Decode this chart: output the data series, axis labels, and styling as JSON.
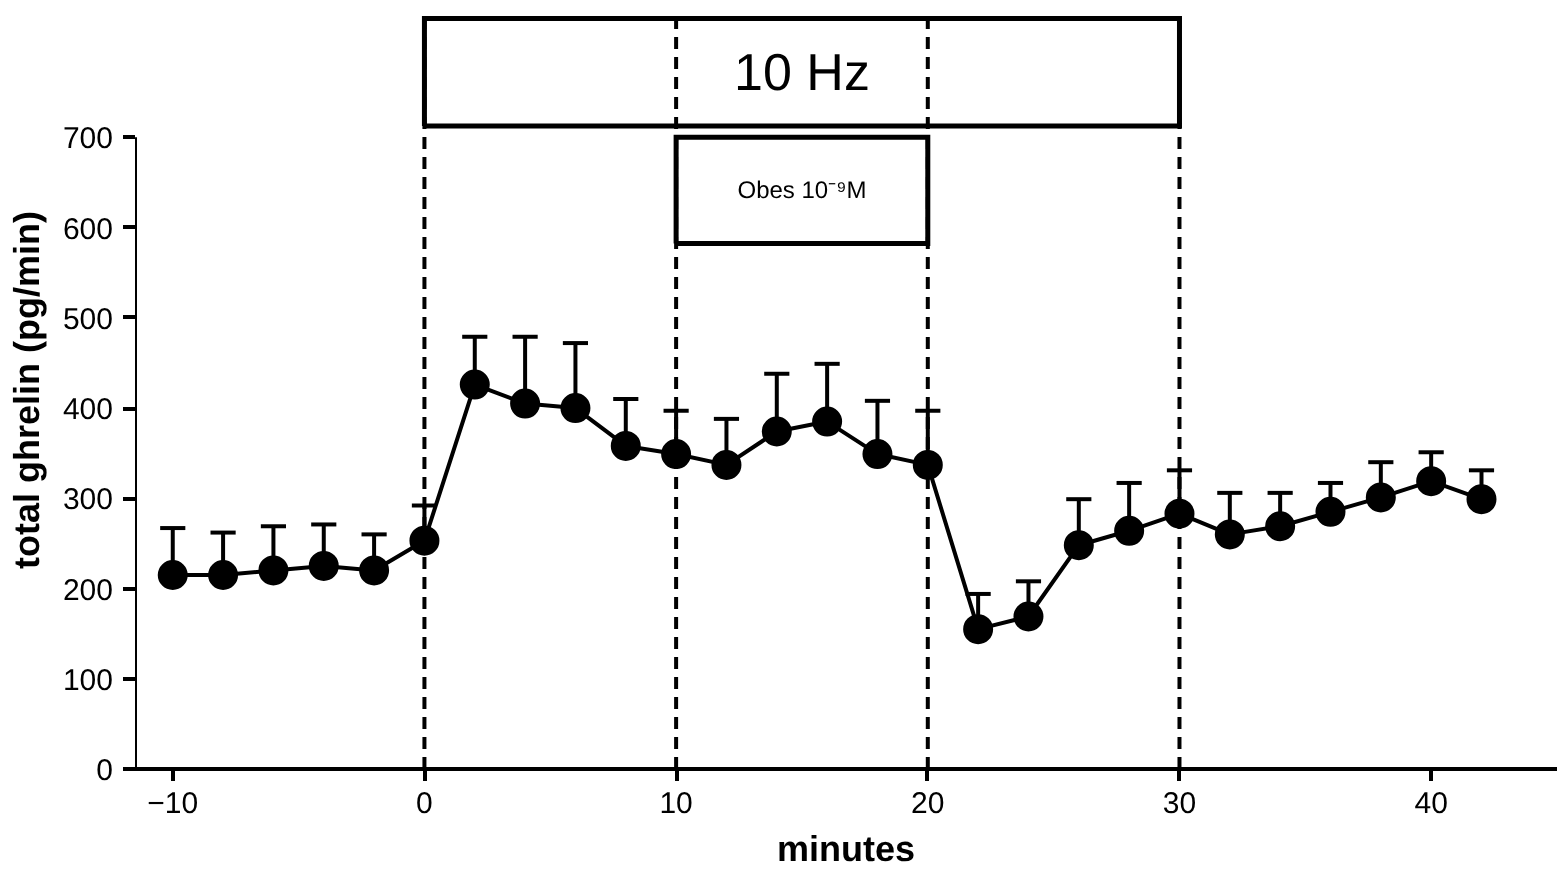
{
  "chart_data": {
    "type": "line",
    "xlabel": "minutes",
    "ylabel": "total ghrelin (pg/min)",
    "x": [
      -10,
      -8,
      -6,
      -4,
      -2,
      0,
      2,
      4,
      6,
      8,
      10,
      12,
      14,
      16,
      18,
      20,
      22,
      24,
      26,
      28,
      30,
      32,
      34,
      36,
      38,
      40,
      42
    ],
    "series": [
      {
        "color": "#000000",
        "values": [
          215,
          215,
          220,
          225,
          220,
          253,
          426,
          405,
          400,
          358,
          349,
          337,
          374,
          385,
          349,
          337,
          155,
          169,
          248,
          264,
          283,
          260,
          269,
          285,
          301,
          319,
          299
        ],
        "errors": [
          [
            215,
            267
          ],
          [
            215,
            262
          ],
          [
            220,
            269
          ],
          [
            225,
            271
          ],
          [
            220,
            260
          ],
          [
            253,
            292
          ],
          [
            426,
            479
          ],
          [
            405,
            479
          ],
          [
            400,
            472
          ],
          [
            358,
            410
          ],
          [
            349,
            397
          ],
          [
            337,
            388
          ],
          [
            374,
            438
          ],
          [
            385,
            449
          ],
          [
            349,
            408
          ],
          [
            337,
            397
          ],
          [
            155,
            194
          ],
          [
            169,
            208
          ],
          [
            248,
            299
          ],
          [
            264,
            317
          ],
          [
            283,
            331
          ],
          [
            260,
            306
          ],
          [
            269,
            306
          ],
          [
            285,
            317
          ],
          [
            301,
            340
          ],
          [
            319,
            351
          ],
          [
            299,
            331
          ]
        ]
      }
    ],
    "xlim": [
      -11.5,
      45
    ],
    "xticks": [
      -10,
      0,
      10,
      20,
      30,
      40
    ],
    "ylim": [
      0,
      700
    ],
    "yticks": [
      0,
      100,
      200,
      300,
      400,
      500,
      600,
      700
    ],
    "marker": "circle",
    "line_style": "solid",
    "grid": false,
    "ref_lines": [
      {
        "axis": "x",
        "value": 0,
        "label": null,
        "line_style": "dashed",
        "color": "#000000"
      },
      {
        "axis": "x",
        "value": 10,
        "label": null,
        "line_style": "dashed",
        "color": "#000000"
      },
      {
        "axis": "x",
        "value": 20,
        "label": null,
        "line_style": "dashed",
        "color": "#000000"
      },
      {
        "axis": "x",
        "value": 30,
        "label": null,
        "line_style": "dashed",
        "color": "#000000"
      }
    ],
    "annotations": [
      "10 Hz",
      "Obes 10⁻⁹M"
    ]
  }
}
